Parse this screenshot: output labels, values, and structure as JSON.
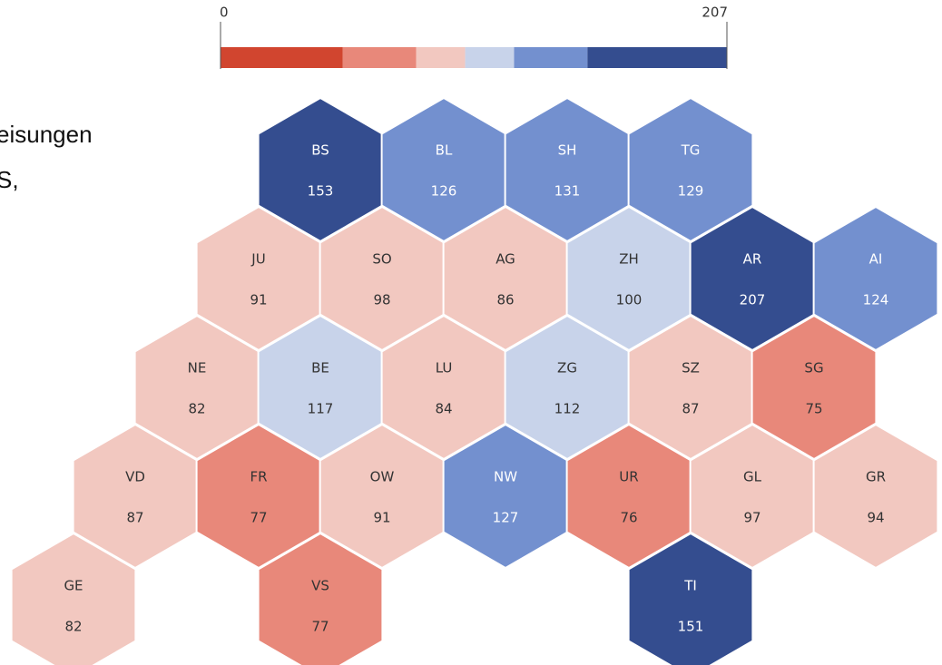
{
  "chart_data": {
    "type": "hexmap",
    "title_lines": [
      "eisungen",
      "S,"
    ],
    "codes": [
      "BS",
      "BL",
      "SH",
      "TG",
      "JU",
      "SO",
      "AG",
      "ZH",
      "AR",
      "AI",
      "NE",
      "BE",
      "LU",
      "ZG",
      "SZ",
      "SG",
      "VD",
      "FR",
      "OW",
      "NW",
      "UR",
      "GL",
      "GR",
      "GE",
      "VS",
      "TI"
    ],
    "values": [
      153,
      126,
      131,
      129,
      91,
      98,
      86,
      100,
      207,
      124,
      82,
      117,
      84,
      112,
      87,
      75,
      87,
      77,
      91,
      127,
      76,
      97,
      94,
      82,
      77,
      151
    ],
    "legend": {
      "lim": [
        0,
        207
      ],
      "ticks": [
        0,
        207
      ],
      "breaks": [
        0,
        50,
        80,
        100,
        120,
        150,
        207
      ],
      "colors": [
        "#d1452f",
        "#e8887a",
        "#f2c8c0",
        "#c8d3ea",
        "#7390cf",
        "#344d8f"
      ]
    }
  }
}
